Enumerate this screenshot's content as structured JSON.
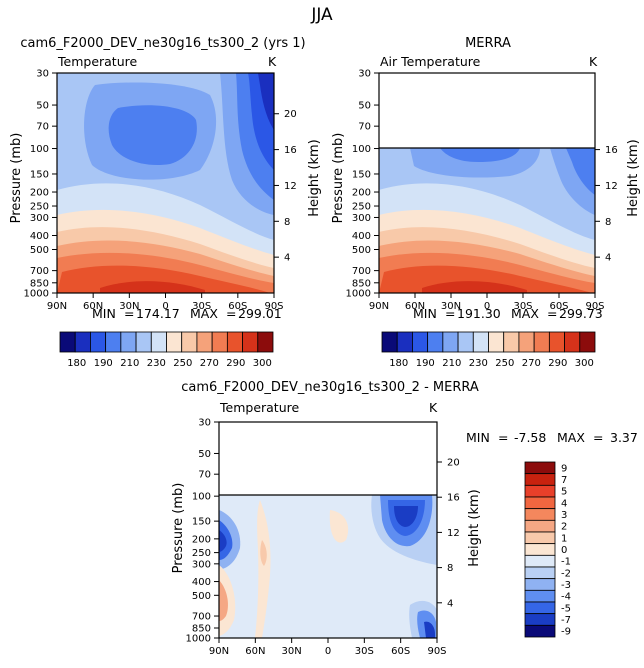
{
  "figure_title": "JJA",
  "stats_separator": "=",
  "chart_data": [
    {
      "type": "heatmap",
      "id": "p1",
      "title": "cam6_F2000_DEV_ne30g16_ts300_2 (yrs 1)",
      "variable": "Temperature",
      "units": "K",
      "ylabel": "Pressure (mb)",
      "ylabel_right": "Height (km)",
      "x_ticks": [
        "90N",
        "60N",
        "30N",
        "0",
        "30S",
        "60S",
        "90S"
      ],
      "y_ticks": [
        "30",
        "50",
        "70",
        "100",
        "150",
        "200",
        "250",
        "300",
        "400",
        "500",
        "700",
        "850",
        "1000"
      ],
      "height_ticks": [
        "20",
        "16",
        "12",
        "8",
        "4"
      ],
      "min_label": "MIN",
      "min_value": "174.17",
      "max_label": "MAX",
      "max_value": "299.01",
      "colorbar_ticks": [
        "180",
        "190",
        "210",
        "230",
        "250",
        "270",
        "290",
        "300"
      ]
    },
    {
      "type": "heatmap",
      "id": "p2",
      "title": "MERRA",
      "variable": "Air Temperature",
      "units": "K",
      "ylabel": "Pressure (mb)",
      "ylabel_right": "Height (km)",
      "x_ticks": [
        "90N",
        "60N",
        "30N",
        "0",
        "30S",
        "60S",
        "90S"
      ],
      "y_ticks": [
        "30",
        "50",
        "70",
        "100",
        "150",
        "200",
        "250",
        "300",
        "400",
        "500",
        "700",
        "850",
        "1000"
      ],
      "height_ticks": [
        "16",
        "12",
        "8",
        "4"
      ],
      "data_top_pressure": 100,
      "min_label": "MIN",
      "min_value": "191.30",
      "max_label": "MAX",
      "max_value": "299.73",
      "colorbar_ticks": [
        "180",
        "190",
        "210",
        "230",
        "250",
        "270",
        "290",
        "300"
      ]
    },
    {
      "type": "heatmap",
      "id": "p3",
      "title": "cam6_F2000_DEV_ne30g16_ts300_2 - MERRA",
      "variable": "Temperature",
      "units": "K",
      "ylabel": "Pressure (mb)",
      "ylabel_right": "Height (km)",
      "x_ticks": [
        "90N",
        "60N",
        "30N",
        "0",
        "30S",
        "60S",
        "90S"
      ],
      "y_ticks": [
        "30",
        "50",
        "70",
        "100",
        "150",
        "200",
        "250",
        "300",
        "400",
        "500",
        "700",
        "850",
        "1000"
      ],
      "height_ticks": [
        "20",
        "16",
        "12",
        "8",
        "4"
      ],
      "data_top_pressure": 100,
      "min_label": "MIN",
      "min_value": "-7.58",
      "max_label": "MAX",
      "max_value": "3.37",
      "colorbar_ticks": [
        "9",
        "7",
        "5",
        "4",
        "3",
        "2",
        "1",
        "0",
        "-1",
        "-2",
        "-3",
        "-4",
        "-5",
        "-7",
        "-9"
      ]
    }
  ],
  "colors": {
    "abs_scale": [
      "#0a0a78",
      "#1a2fbf",
      "#2b57e6",
      "#4d7ff0",
      "#7ea6f3",
      "#a9c6f5",
      "#d3e3f7",
      "#fbe5d2",
      "#f8c9a9",
      "#f5a27a",
      "#f17c52",
      "#e8532c",
      "#d5321a",
      "#8c0c0c"
    ],
    "diff_scale": [
      "#8c0c0c",
      "#c8220f",
      "#e8402a",
      "#f16640",
      "#f4875d",
      "#f5a784",
      "#f8c9ab",
      "#fbe6d3",
      "#dfeaf8",
      "#b9d0f4",
      "#8fb2f2",
      "#5f8ef1",
      "#3566e6",
      "#1a3dc4",
      "#0a0a78"
    ],
    "axis": "#000000"
  }
}
